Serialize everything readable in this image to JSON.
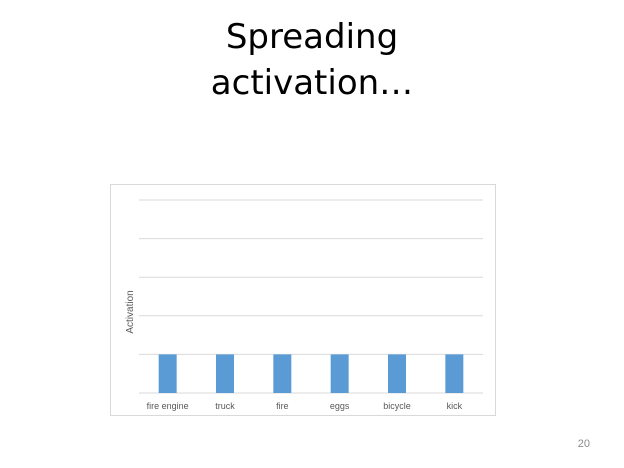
{
  "slide": {
    "title_line1": "Spreading",
    "title_line2": "activation…",
    "page_number": "20"
  },
  "chart_data": {
    "type": "bar",
    "categories": [
      "fire engine",
      "truck",
      "fire",
      "eggs",
      "bicycle",
      "kick"
    ],
    "values": [
      1,
      1,
      1,
      1,
      1,
      1
    ],
    "title": "",
    "xlabel": "",
    "ylabel": "Activation",
    "ylim": [
      0,
      5
    ],
    "grid": true,
    "legend": "none",
    "bar_color": "#5b9bd5",
    "grid_color": "#d9d9d9"
  }
}
